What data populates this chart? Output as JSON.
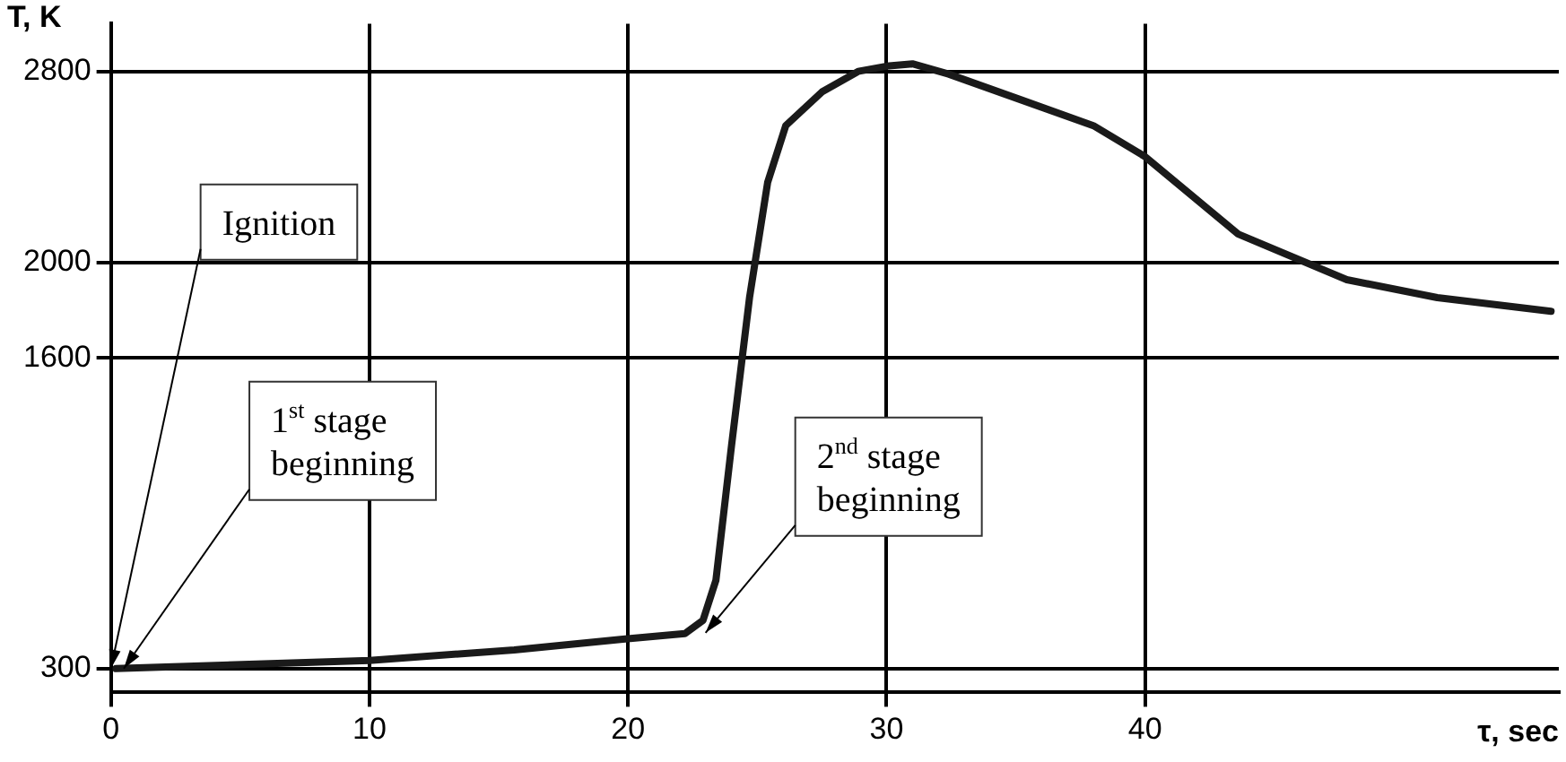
{
  "chart_data": {
    "type": "line",
    "xlabel": "τ, sec",
    "ylabel": "T, K",
    "series": [
      {
        "color": "#1a1a1a",
        "x": [
          0.2,
          10,
          15.6,
          19.8,
          22.2,
          22.9,
          23.4,
          24,
          24.7,
          25.4,
          26.1,
          27.5,
          28.9,
          30,
          31,
          32.4,
          35.2,
          38,
          40,
          43.6,
          47.8,
          51.3,
          55.7
        ],
        "values": [
          300,
          334,
          378,
          423,
          446,
          502,
          670,
          1230,
          1853,
          2335,
          2573,
          2714,
          2800,
          2822,
          2832,
          2789,
          2681,
          2573,
          2443,
          2119,
          1928,
          1853,
          1796
        ]
      }
    ],
    "xlim": [
      0,
      56
    ],
    "xticks": [
      0,
      10,
      20,
      30,
      40
    ],
    "ylim": [
      200,
      3000
    ],
    "yticks": [
      300,
      1600,
      2000,
      2800
    ],
    "grid": true,
    "legend": false,
    "marker": "none",
    "line_style": "solid",
    "annotations": [
      {
        "text": "Ignition",
        "x": 0,
        "y": 300
      },
      {
        "text": "1$^{st}$ stage beginning",
        "x": 0.5,
        "y": 300
      },
      {
        "text": "2$^{nd}$ stage beginning",
        "x": 23,
        "y": 450
      }
    ]
  }
}
